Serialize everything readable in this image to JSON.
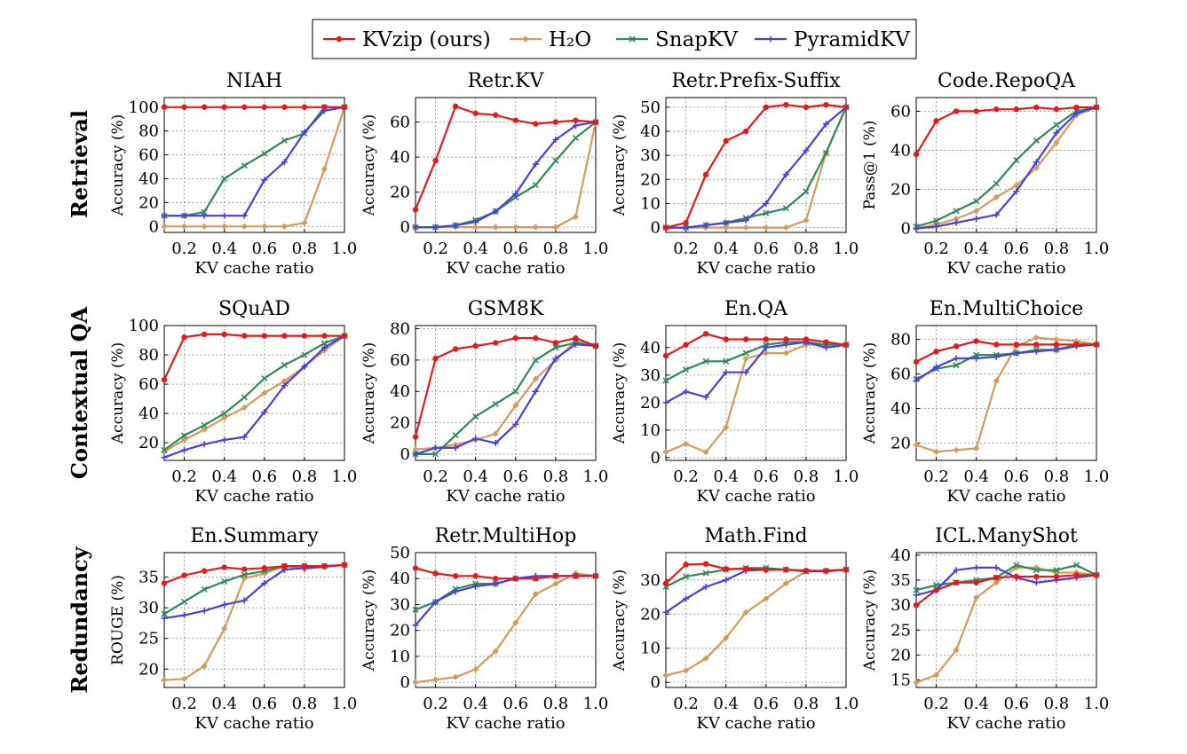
{
  "legend": {
    "position": "top-center",
    "entries": [
      {
        "key": "kvzip",
        "label": "KVzip (ours)",
        "color": "#e41a1c",
        "marker": "circle"
      },
      {
        "key": "h2o",
        "label": "H₂O",
        "color": "#d69a5a",
        "marker": "diamond"
      },
      {
        "key": "snapkv",
        "label": "SnapKV",
        "color": "#2e8b57",
        "marker": "x"
      },
      {
        "key": "pyramidkv",
        "label": "PyramidKV",
        "color": "#4b3fe0",
        "marker": "plus"
      }
    ]
  },
  "rows": [
    {
      "label": "Retrieval"
    },
    {
      "label": "Contextual QA"
    },
    {
      "label": "Redundancy"
    }
  ],
  "chart_data": [
    {
      "type": "line",
      "title": "NIAH",
      "xlabel": "KV cache ratio",
      "ylabel": "Accuracy (%)",
      "x": [
        0.1,
        0.2,
        0.3,
        0.4,
        0.5,
        0.6,
        0.7,
        0.8,
        0.9,
        1.0
      ],
      "xlim": [
        0.1,
        1.0
      ],
      "xticks": [
        "0.2",
        "0.4",
        "0.6",
        "0.8",
        "1.0"
      ],
      "ylim": [
        -5,
        108
      ],
      "yticks": [
        0,
        20,
        40,
        60,
        80,
        100
      ],
      "grid": true,
      "series": [
        {
          "key": "kvzip",
          "values": [
            100,
            100,
            100,
            100,
            100,
            100,
            100,
            100,
            100,
            100
          ]
        },
        {
          "key": "h2o",
          "values": [
            0,
            0,
            0,
            0,
            0,
            0,
            0,
            3,
            48,
            100
          ]
        },
        {
          "key": "snapkv",
          "values": [
            9,
            9,
            12,
            40,
            51,
            61,
            72,
            78,
            100,
            100
          ]
        },
        {
          "key": "pyramidkv",
          "values": [
            9,
            9,
            9,
            9,
            9,
            39,
            54,
            79,
            97,
            100
          ]
        }
      ]
    },
    {
      "type": "line",
      "title": "Retr.KV",
      "xlabel": "KV cache ratio",
      "ylabel": "Accuracy (%)",
      "x": [
        0.1,
        0.2,
        0.3,
        0.4,
        0.5,
        0.6,
        0.7,
        0.8,
        0.9,
        1.0
      ],
      "xlim": [
        0.1,
        1.0
      ],
      "xticks": [
        "0.2",
        "0.4",
        "0.6",
        "0.8",
        "1.0"
      ],
      "ylim": [
        -3,
        74
      ],
      "yticks": [
        0,
        20,
        40,
        60
      ],
      "grid": true,
      "series": [
        {
          "key": "kvzip",
          "values": [
            10,
            38,
            69,
            65,
            64,
            61,
            59,
            60,
            61,
            60
          ]
        },
        {
          "key": "h2o",
          "values": [
            0,
            0,
            0,
            0,
            0,
            0,
            0,
            0,
            6,
            60
          ]
        },
        {
          "key": "snapkv",
          "values": [
            0,
            0,
            1,
            4,
            9,
            17,
            24,
            38,
            51,
            60
          ]
        },
        {
          "key": "pyramidkv",
          "values": [
            0,
            0,
            1,
            3,
            9,
            19,
            36,
            50,
            58,
            60
          ]
        }
      ]
    },
    {
      "type": "line",
      "title": "Retr.Prefix-Suffix",
      "xlabel": "KV cache ratio",
      "ylabel": "Accuracy (%)",
      "x": [
        0.1,
        0.2,
        0.3,
        0.4,
        0.5,
        0.6,
        0.7,
        0.8,
        0.9,
        1.0
      ],
      "xlim": [
        0.1,
        1.0
      ],
      "xticks": [
        "0.2",
        "0.4",
        "0.6",
        "0.8",
        "1.0"
      ],
      "ylim": [
        -2,
        54
      ],
      "yticks": [
        0,
        10,
        20,
        30,
        40,
        50
      ],
      "grid": true,
      "series": [
        {
          "key": "kvzip",
          "values": [
            0,
            2,
            22,
            36,
            40,
            50,
            51,
            50,
            51,
            50
          ]
        },
        {
          "key": "h2o",
          "values": [
            0,
            0,
            0,
            0,
            0,
            0,
            0,
            3,
            31,
            50
          ]
        },
        {
          "key": "snapkv",
          "values": [
            0,
            0,
            1,
            2,
            4,
            6,
            8,
            15,
            31,
            50
          ]
        },
        {
          "key": "pyramidkv",
          "values": [
            0,
            0,
            1,
            2,
            3,
            10,
            22,
            32,
            43,
            50
          ]
        }
      ]
    },
    {
      "type": "line",
      "title": "Code.RepoQA",
      "xlabel": "KV cache ratio",
      "ylabel": "Pass@1 (%)",
      "x": [
        0.1,
        0.2,
        0.3,
        0.4,
        0.5,
        0.6,
        0.7,
        0.8,
        0.9,
        1.0
      ],
      "xlim": [
        0.1,
        1.0
      ],
      "xticks": [
        "0.2",
        "0.4",
        "0.6",
        "0.8",
        "1.0"
      ],
      "ylim": [
        -2,
        67
      ],
      "yticks": [
        0,
        20,
        40,
        60
      ],
      "grid": true,
      "series": [
        {
          "key": "kvzip",
          "values": [
            38,
            55,
            60,
            60,
            61,
            61,
            62,
            61,
            62,
            62
          ]
        },
        {
          "key": "h2o",
          "values": [
            0,
            2,
            5,
            9,
            16,
            22,
            31,
            44,
            58,
            62
          ]
        },
        {
          "key": "snapkv",
          "values": [
            1,
            4,
            9,
            14,
            23,
            35,
            45,
            53,
            60,
            62
          ]
        },
        {
          "key": "pyramidkv",
          "values": [
            0,
            1,
            3,
            5,
            7,
            19,
            34,
            49,
            59,
            62
          ]
        }
      ]
    },
    {
      "type": "line",
      "title": "SQuAD",
      "xlabel": "KV cache ratio",
      "ylabel": "Accuracy (%)",
      "x": [
        0.1,
        0.2,
        0.3,
        0.4,
        0.5,
        0.6,
        0.7,
        0.8,
        0.9,
        1.0
      ],
      "xlim": [
        0.1,
        1.0
      ],
      "xticks": [
        "0.2",
        "0.4",
        "0.6",
        "0.8",
        "1.0"
      ],
      "ylim": [
        8,
        100
      ],
      "yticks": [
        20,
        40,
        60,
        80,
        100
      ],
      "grid": true,
      "series": [
        {
          "key": "kvzip",
          "values": [
            63,
            92,
            94,
            94,
            93,
            93,
            93,
            93,
            93,
            93
          ]
        },
        {
          "key": "h2o",
          "values": [
            14,
            22,
            29,
            37,
            44,
            54,
            62,
            72,
            83,
            93
          ]
        },
        {
          "key": "snapkv",
          "values": [
            15,
            25,
            32,
            40,
            51,
            64,
            73,
            80,
            88,
            93
          ]
        },
        {
          "key": "pyramidkv",
          "values": [
            10,
            15,
            19,
            22,
            24,
            41,
            59,
            72,
            85,
            93
          ]
        }
      ]
    },
    {
      "type": "line",
      "title": "GSM8K",
      "xlabel": "KV cache ratio",
      "ylabel": "Accuracy (%)",
      "x": [
        0.1,
        0.2,
        0.3,
        0.4,
        0.5,
        0.6,
        0.7,
        0.8,
        0.9,
        1.0
      ],
      "xlim": [
        0.1,
        1.0
      ],
      "xticks": [
        "0.2",
        "0.4",
        "0.6",
        "0.8",
        "1.0"
      ],
      "ylim": [
        -4,
        82
      ],
      "yticks": [
        0,
        20,
        40,
        60,
        80
      ],
      "grid": true,
      "series": [
        {
          "key": "kvzip",
          "values": [
            11,
            61,
            67,
            69,
            71,
            74,
            74,
            71,
            74,
            69
          ]
        },
        {
          "key": "h2o",
          "values": [
            3,
            4,
            6,
            9,
            13,
            31,
            48,
            60,
            72,
            69
          ]
        },
        {
          "key": "snapkv",
          "values": [
            0,
            0,
            12,
            24,
            32,
            40,
            60,
            68,
            71,
            69
          ]
        },
        {
          "key": "pyramidkv",
          "values": [
            0,
            4,
            4,
            10,
            7,
            19,
            40,
            61,
            70,
            69
          ]
        }
      ]
    },
    {
      "type": "line",
      "title": "En.QA",
      "xlabel": "KV cache ratio",
      "ylabel": "Accuracy (%)",
      "x": [
        0.1,
        0.2,
        0.3,
        0.4,
        0.5,
        0.6,
        0.7,
        0.8,
        0.9,
        1.0
      ],
      "xlim": [
        0.1,
        1.0
      ],
      "xticks": [
        "0.2",
        "0.4",
        "0.6",
        "0.8",
        "1.0"
      ],
      "ylim": [
        -1,
        48
      ],
      "yticks": [
        0,
        10,
        20,
        30,
        40
      ],
      "grid": true,
      "series": [
        {
          "key": "kvzip",
          "values": [
            37,
            41,
            45,
            43,
            43,
            43,
            43,
            43,
            42,
            41
          ]
        },
        {
          "key": "h2o",
          "values": [
            2,
            5,
            2,
            11,
            36,
            38,
            38,
            41,
            41,
            41
          ]
        },
        {
          "key": "snapkv",
          "values": [
            28,
            32,
            35,
            35,
            38,
            41,
            42,
            42,
            41,
            41
          ]
        },
        {
          "key": "pyramidkv",
          "values": [
            20,
            24,
            22,
            31,
            31,
            40,
            41,
            42,
            40,
            41
          ]
        }
      ]
    },
    {
      "type": "line",
      "title": "En.MultiChoice",
      "xlabel": "KV cache ratio",
      "ylabel": "Accuracy (%)",
      "x": [
        0.1,
        0.2,
        0.3,
        0.4,
        0.5,
        0.6,
        0.7,
        0.8,
        0.9,
        1.0
      ],
      "xlim": [
        0.1,
        1.0
      ],
      "xticks": [
        "0.2",
        "0.4",
        "0.6",
        "0.8",
        "1.0"
      ],
      "ylim": [
        10,
        88
      ],
      "yticks": [
        20,
        40,
        60,
        80
      ],
      "grid": true,
      "series": [
        {
          "key": "kvzip",
          "values": [
            67,
            73,
            76,
            79,
            77,
            77,
            77,
            77,
            77,
            77
          ]
        },
        {
          "key": "h2o",
          "values": [
            19,
            15,
            16,
            17,
            56,
            76,
            81,
            80,
            79,
            77
          ]
        },
        {
          "key": "snapkv",
          "values": [
            57,
            63,
            65,
            71,
            71,
            72,
            74,
            74,
            77,
            77
          ]
        },
        {
          "key": "pyramidkv",
          "values": [
            56,
            64,
            69,
            69,
            70,
            72,
            73,
            74,
            76,
            77
          ]
        }
      ]
    },
    {
      "type": "line",
      "title": "En.Summary",
      "xlabel": "KV cache ratio",
      "ylabel": "ROUGE (%)",
      "x": [
        0.1,
        0.2,
        0.3,
        0.4,
        0.5,
        0.6,
        0.7,
        0.8,
        0.9,
        1.0
      ],
      "xlim": [
        0.1,
        1.0
      ],
      "xticks": [
        "0.2",
        "0.4",
        "0.6",
        "0.8",
        "1.0"
      ],
      "ylim": [
        17,
        39
      ],
      "yticks": [
        20,
        25,
        30,
        35
      ],
      "grid": true,
      "series": [
        {
          "key": "kvzip",
          "values": [
            34,
            35.3,
            36,
            36.6,
            36.3,
            36.5,
            36.8,
            36.8,
            36.8,
            37
          ]
        },
        {
          "key": "h2o",
          "values": [
            18.2,
            18.4,
            20.5,
            26.6,
            34.8,
            35.6,
            36.8,
            36.3,
            36.7,
            37
          ]
        },
        {
          "key": "snapkv",
          "values": [
            29,
            31,
            33,
            34.3,
            35.4,
            36,
            36.8,
            36.8,
            36.8,
            37
          ]
        },
        {
          "key": "pyramidkv",
          "values": [
            28.3,
            28.8,
            29.5,
            30.5,
            31.2,
            34,
            36.2,
            36.5,
            36.7,
            37
          ]
        }
      ]
    },
    {
      "type": "line",
      "title": "Retr.MultiHop",
      "xlabel": "KV cache ratio",
      "ylabel": "Accuracy (%)",
      "x": [
        0.1,
        0.2,
        0.3,
        0.4,
        0.5,
        0.6,
        0.7,
        0.8,
        0.9,
        1.0
      ],
      "xlim": [
        0.1,
        1.0
      ],
      "xticks": [
        "0.2",
        "0.4",
        "0.6",
        "0.8",
        "1.0"
      ],
      "ylim": [
        -2,
        50
      ],
      "yticks": [
        0,
        10,
        20,
        30,
        40,
        50
      ],
      "grid": true,
      "series": [
        {
          "key": "kvzip",
          "values": [
            44,
            42,
            41,
            41,
            40,
            40,
            40,
            41,
            41,
            41
          ]
        },
        {
          "key": "h2o",
          "values": [
            0,
            1,
            2,
            5,
            12,
            23,
            34,
            38,
            42,
            41
          ]
        },
        {
          "key": "snapkv",
          "values": [
            28,
            31,
            36,
            38,
            38,
            40,
            40,
            41,
            41,
            41
          ]
        },
        {
          "key": "pyramidkv",
          "values": [
            22,
            31,
            35,
            37,
            38,
            40,
            41,
            41,
            41,
            41
          ]
        }
      ]
    },
    {
      "type": "line",
      "title": "Math.Find",
      "xlabel": "KV cache ratio",
      "ylabel": "Accuracy (%)",
      "x": [
        0.1,
        0.2,
        0.3,
        0.4,
        0.5,
        0.6,
        0.7,
        0.8,
        0.9,
        1.0
      ],
      "xlim": [
        0.1,
        1.0
      ],
      "xticks": [
        "0.2",
        "0.4",
        "0.6",
        "0.8",
        "1.0"
      ],
      "ylim": [
        -1.5,
        38
      ],
      "yticks": [
        0,
        10,
        20,
        30
      ],
      "grid": true,
      "series": [
        {
          "key": "kvzip",
          "values": [
            29,
            34.5,
            34.7,
            33.2,
            33.3,
            33,
            33,
            32.7,
            32.7,
            33
          ]
        },
        {
          "key": "h2o",
          "values": [
            2,
            3.5,
            7,
            13,
            20.5,
            24.5,
            29,
            32.5,
            32.5,
            33
          ]
        },
        {
          "key": "snapkv",
          "values": [
            28,
            31,
            32,
            33,
            33.5,
            33.5,
            33,
            32.5,
            32.7,
            33
          ]
        },
        {
          "key": "pyramidkv",
          "values": [
            20.5,
            24.5,
            28,
            30,
            32.7,
            33,
            33,
            32.7,
            32.5,
            33
          ]
        }
      ]
    },
    {
      "type": "line",
      "title": "ICL.ManyShot",
      "xlabel": "KV cache ratio",
      "ylabel": "Accuracy (%)",
      "x": [
        0.1,
        0.2,
        0.3,
        0.4,
        0.5,
        0.6,
        0.7,
        0.8,
        0.9,
        1.0
      ],
      "xlim": [
        0.1,
        1.0
      ],
      "xticks": [
        "0.2",
        "0.4",
        "0.6",
        "0.8",
        "1.0"
      ],
      "ylim": [
        13.5,
        40.5
      ],
      "yticks": [
        15,
        20,
        25,
        30,
        35,
        40
      ],
      "grid": true,
      "series": [
        {
          "key": "kvzip",
          "values": [
            30,
            33,
            34.5,
            34.5,
            35.5,
            35.7,
            35.7,
            35.7,
            36,
            36
          ]
        },
        {
          "key": "h2o",
          "values": [
            14.5,
            16,
            21,
            31.5,
            34.5,
            37.5,
            37.5,
            36.5,
            36.5,
            36
          ]
        },
        {
          "key": "snapkv",
          "values": [
            33,
            34,
            34.5,
            35,
            35.5,
            38,
            37,
            37,
            38,
            36
          ]
        },
        {
          "key": "pyramidkv",
          "values": [
            32,
            33,
            37,
            37.5,
            37.5,
            35.5,
            34.5,
            35,
            35.5,
            36
          ]
        }
      ]
    }
  ]
}
